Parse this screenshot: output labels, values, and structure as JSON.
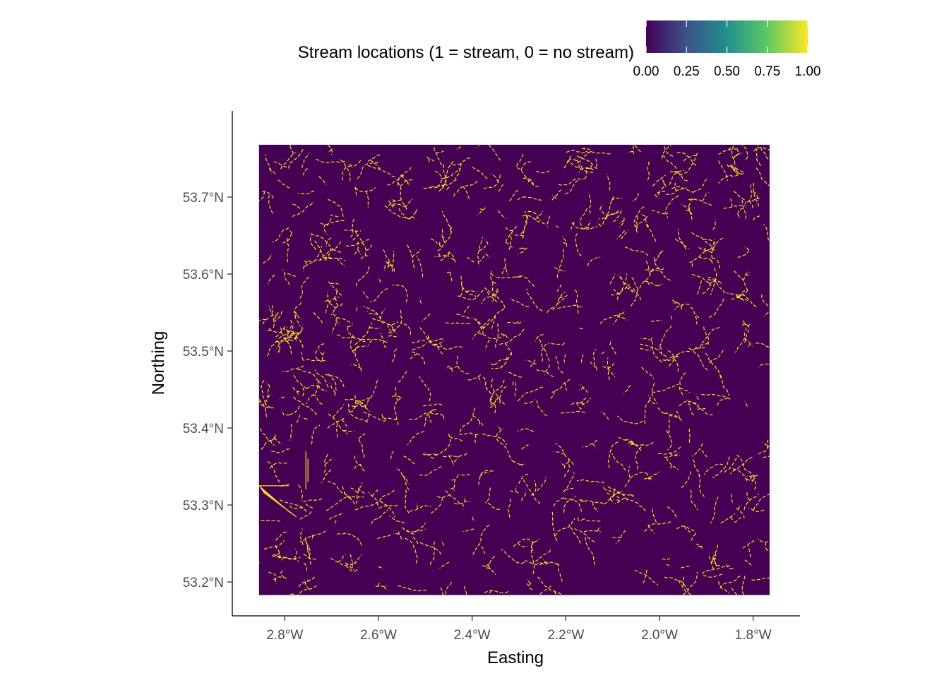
{
  "chart_data": {
    "type": "heatmap",
    "title": "",
    "xlabel": "Easting",
    "ylabel": "Northing",
    "xlim": [
      -2.912,
      -1.7
    ],
    "ylim": [
      53.156,
      53.812
    ],
    "raster_extent": {
      "x": [
        -2.855,
        -1.765
      ],
      "y": [
        53.183,
        53.768
      ]
    },
    "x_ticks": [
      {
        "value": -2.8,
        "label": "2.8°W"
      },
      {
        "value": -2.6,
        "label": "2.6°W"
      },
      {
        "value": -2.4,
        "label": "2.4°W"
      },
      {
        "value": -2.2,
        "label": "2.2°W"
      },
      {
        "value": -2.0,
        "label": "2.0°W"
      },
      {
        "value": -1.8,
        "label": "1.8°W"
      }
    ],
    "y_ticks": [
      {
        "value": 53.2,
        "label": "53.2°N"
      },
      {
        "value": 53.3,
        "label": "53.3°N"
      },
      {
        "value": 53.4,
        "label": "53.4°N"
      },
      {
        "value": 53.5,
        "label": "53.5°N"
      },
      {
        "value": 53.6,
        "label": "53.6°N"
      },
      {
        "value": 53.7,
        "label": "53.7°N"
      }
    ],
    "values_description": "binary raster: 1 = stream cell, 0 = no stream cell",
    "value_range": [
      0,
      1
    ],
    "colorscale": "viridis",
    "colorscale_stops": [
      "#440154",
      "#3B528B",
      "#21908C",
      "#5DC963",
      "#FDE725"
    ],
    "background_value_color": "#440154",
    "stream_value_color": "#FDE725",
    "legend": {
      "title": "Stream locations (1 = stream, 0 = no stream)",
      "position": "top",
      "breaks": [
        0.0,
        0.25,
        0.5,
        0.75,
        1.0
      ],
      "labels": [
        "0.00",
        "0.25",
        "0.50",
        "0.75",
        "1.00"
      ]
    },
    "grid": false
  }
}
